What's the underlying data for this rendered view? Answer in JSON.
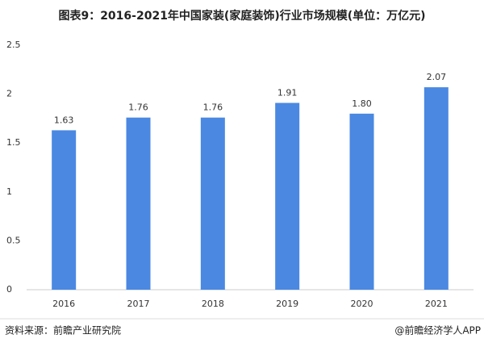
{
  "chart_data": {
    "type": "bar",
    "title": "图表9：2016-2021年中国家装(家庭装饰)行业市场规模(单位：万亿元)",
    "categories": [
      "2016",
      "2017",
      "2018",
      "2019",
      "2020",
      "2021"
    ],
    "values": [
      1.63,
      1.76,
      1.76,
      1.91,
      1.8,
      2.07
    ],
    "value_labels": [
      "1.63",
      "1.76",
      "1.76",
      "1.91",
      "1.80",
      "2.07"
    ],
    "color": "#4a88e2",
    "ylim": [
      0,
      2.5
    ],
    "yticks": [
      0,
      0.5,
      1,
      1.5,
      2,
      2.5
    ],
    "grid": false,
    "source": "资料来源：前瞻产业研究院",
    "credit": "@前瞻经济学人APP"
  }
}
